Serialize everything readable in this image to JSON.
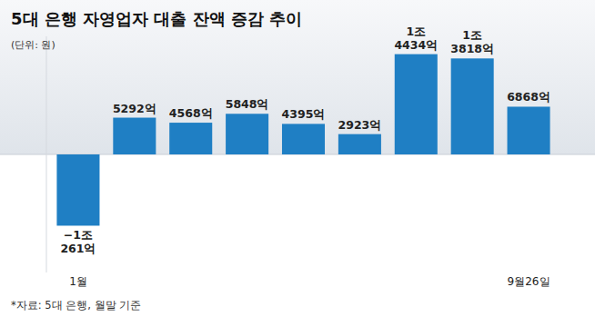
{
  "chart_data": {
    "type": "bar",
    "title": "5대 은행 자영업자 대출 잔액 증감 추이",
    "subtitle": "(단위: 원)",
    "annotations": [
      "*자료: 5대 은행, 월말 기준"
    ],
    "categories": [
      "1월",
      null,
      null,
      null,
      null,
      null,
      null,
      null,
      "9월26일"
    ],
    "values": [
      -1026100000000,
      529200000000,
      456800000000,
      584800000000,
      439500000000,
      292300000000,
      1443400000000,
      1381800000000,
      686800000000
    ],
    "value_labels": [
      "−1조 261억",
      "5292억",
      "4568억",
      "5848억",
      "4395억",
      "2923억",
      "1조 4434억",
      "1조 3818억",
      "6868억"
    ],
    "data_labels": true,
    "color": "#1f7fc4",
    "ylim": [
      -1700000000000,
      1700000000000
    ],
    "tick_labels": "x"
  }
}
